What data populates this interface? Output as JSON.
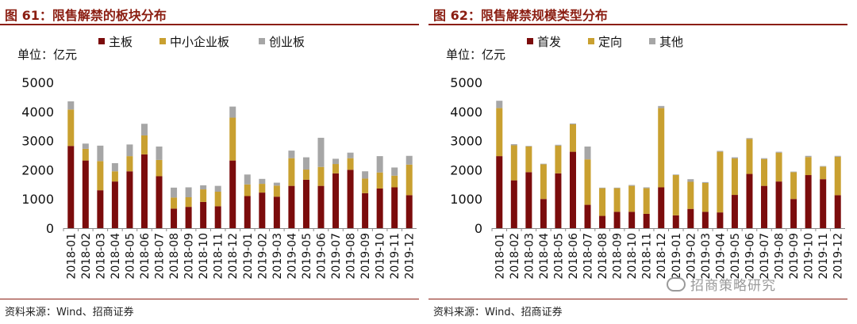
{
  "charts": [
    {
      "figure_title": "图 61：限售解禁的板块分布",
      "source": "资料来源：Wind、招商证券",
      "unit_label": "单位：亿元",
      "chart_data": {
        "type": "bar",
        "stacked": true,
        "categories": [
          "2018-01",
          "2018-02",
          "2018-03",
          "2018-04",
          "2018-05",
          "2018-06",
          "2018-07",
          "2018-08",
          "2018-09",
          "2018-10",
          "2018-11",
          "2018-12",
          "2019-01",
          "2019-02",
          "2019-03",
          "2019-04",
          "2019-05",
          "2019-06",
          "2019-07",
          "2019-08",
          "2019-09",
          "2019-10",
          "2019-11",
          "2019-12"
        ],
        "series": [
          {
            "name": "主板",
            "color": "#7b0c0c",
            "values": [
              2820,
              2320,
              1300,
              1600,
              1950,
              2530,
              1780,
              670,
              730,
              900,
              750,
              2320,
              1100,
              1220,
              1080,
              1450,
              1660,
              1450,
              1880,
              2000,
              1200,
              1360,
              1400,
              1130
            ]
          },
          {
            "name": "中小企业板",
            "color": "#c9a030",
            "values": [
              1250,
              400,
              1000,
              350,
              520,
              650,
              560,
              380,
              330,
              430,
              500,
              1470,
              400,
              300,
              380,
              950,
              350,
              650,
              320,
              400,
              500,
              550,
              400,
              1050
            ]
          },
          {
            "name": "创业板",
            "color": "#a6a6a6",
            "values": [
              280,
              180,
              530,
              280,
              400,
              400,
              460,
              340,
              340,
              140,
              200,
              380,
              340,
              170,
              100,
              260,
              420,
              1000,
              180,
              190,
              250,
              560,
              280,
              300
            ]
          }
        ],
        "ylim": [
          0,
          5000
        ],
        "yticks": [
          0,
          1000,
          2000,
          3000,
          4000,
          5000
        ],
        "legend_position": "top"
      }
    },
    {
      "figure_title": "图 62：限售解禁规模类型分布",
      "source": "资料来源：Wind、招商证券",
      "unit_label": "单位：亿元",
      "chart_data": {
        "type": "bar",
        "stacked": true,
        "categories": [
          "2018-01",
          "2018-02",
          "2018-03",
          "2018-04",
          "2018-05",
          "2018-06",
          "2018-07",
          "2018-08",
          "2018-09",
          "2018-10",
          "2018-11",
          "2018-12",
          "2019-01",
          "2019-02",
          "2019-03",
          "2019-04",
          "2019-05",
          "2019-06",
          "2019-07",
          "2019-08",
          "2019-09",
          "2019-10",
          "2019-11",
          "2019-12"
        ],
        "series": [
          {
            "name": "首发",
            "color": "#7b0c0c",
            "values": [
              2470,
              1640,
              1920,
              1000,
              1880,
              2620,
              800,
              420,
              560,
              560,
              490,
              1400,
              440,
              660,
              560,
              540,
              1140,
              1860,
              1450,
              1600,
              1000,
              1820,
              1680,
              1130
            ]
          },
          {
            "name": "定向",
            "color": "#c9a030",
            "values": [
              1650,
              1200,
              880,
              1190,
              950,
              940,
              1560,
              950,
              810,
              890,
              880,
              2720,
              1380,
              930,
              990,
              2080,
              1250,
              1200,
              920,
              990,
              920,
              620,
              430,
              1320
            ]
          },
          {
            "name": "其他",
            "color": "#a6a6a6",
            "values": [
              250,
              40,
              20,
              20,
              30,
              30,
              440,
              20,
              20,
              30,
              30,
              70,
              20,
              90,
              30,
              30,
              40,
              30,
              30,
              30,
              20,
              40,
              20,
              30
            ]
          }
        ],
        "ylim": [
          0,
          5000
        ],
        "yticks": [
          0,
          1000,
          2000,
          3000,
          4000,
          5000
        ],
        "legend_position": "top"
      }
    }
  ],
  "watermark": "招商策略研究"
}
